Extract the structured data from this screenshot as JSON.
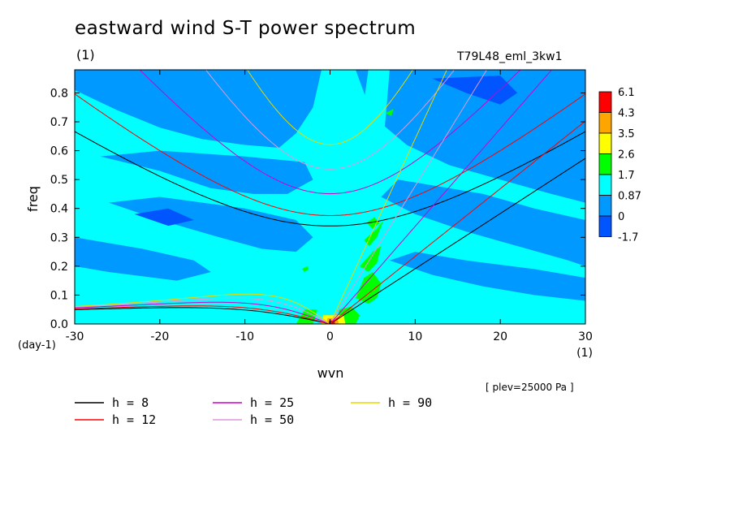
{
  "header": {
    "title": "eastward wind S-T power spectrum",
    "subtitle": "(1)",
    "run_name": "T79L48_eml_3kw1",
    "level_note": "[ plev=25000 Pa ]"
  },
  "chart_data": {
    "type": "heatmap",
    "title": "eastward wind S-T power spectrum",
    "xlabel": "wvn",
    "xunit": "(1)",
    "ylabel": "freq",
    "yunit": "(day-1)",
    "xlim": [
      -30,
      30
    ],
    "ylim": [
      0,
      0.88
    ],
    "x_ticks": [
      "-30",
      "-20",
      "-10",
      "0",
      "10",
      "20",
      "30"
    ],
    "y_ticks": [
      "0.0",
      "0.1",
      "0.2",
      "0.3",
      "0.4",
      "0.5",
      "0.6",
      "0.7",
      "0.8"
    ],
    "colorbar": {
      "labels": [
        "6.1",
        "4.3",
        "3.5",
        "2.6",
        "1.7",
        "0.87",
        "0",
        "-1.7"
      ],
      "colors": [
        "#ff0000",
        "#ffa500",
        "#ffff00",
        "#00ff00",
        "#00ffff",
        "#0099ff",
        "#0055ff"
      ]
    },
    "background_color": "#00ffff",
    "dispersion_curves": [
      {
        "name": "h =  8",
        "color": "#000000",
        "equivalent_depth": 8
      },
      {
        "name": "h = 12",
        "color": "#ff0000",
        "equivalent_depth": 12
      },
      {
        "name": "h = 25",
        "color": "#cc00cc",
        "equivalent_depth": 25
      },
      {
        "name": "h = 50",
        "color": "#dd99dd",
        "equivalent_depth": 50
      },
      {
        "name": "h = 90",
        "color": "#e8d800",
        "equivalent_depth": 90
      }
    ]
  }
}
